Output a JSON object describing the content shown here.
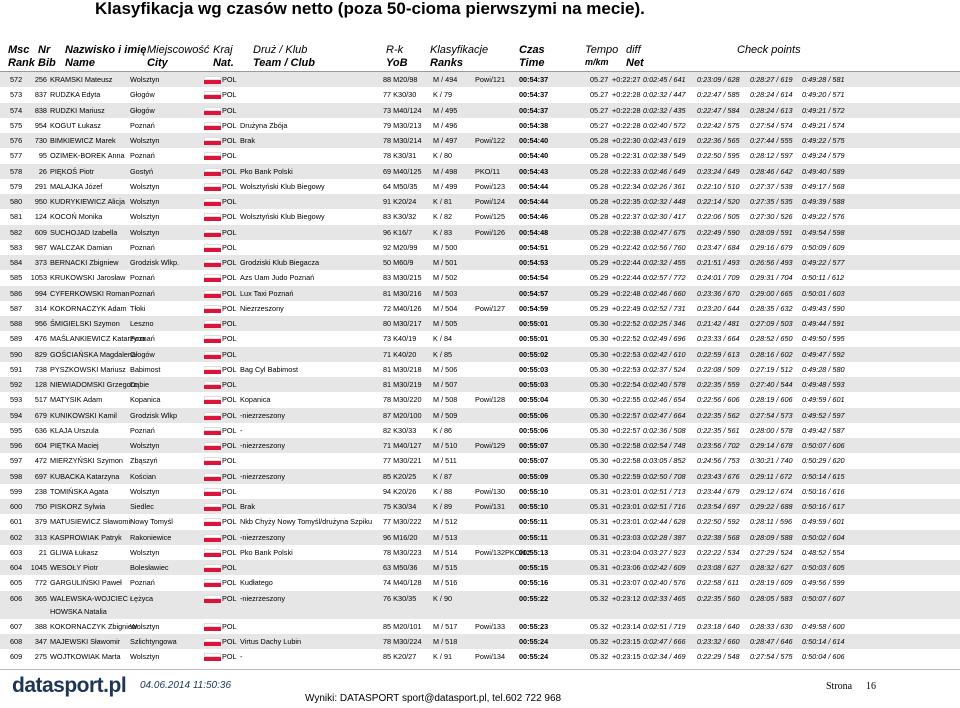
{
  "header": {
    "title": "Klasyfikacja wg czasów netto (poza 50-cioma pierwszymi na mecie).",
    "columns": [
      [
        "Msc",
        "Rank"
      ],
      [
        "Nr",
        "Bib"
      ],
      [
        "Nazwisko i imię",
        "Name"
      ],
      [
        "Miejscowość",
        "City"
      ],
      [
        "Kraj",
        "Nat."
      ],
      [
        "Druż / Klub",
        "Team / Club"
      ],
      [
        "R-k",
        "YoB"
      ],
      [
        "Klasyfikacje",
        "Ranks"
      ],
      [
        "Czas",
        "Time"
      ],
      [
        "Tempo",
        "m/km"
      ],
      [
        "diff",
        "Net"
      ],
      [
        "Check points"
      ]
    ]
  },
  "rows": [
    [
      "572",
      "256",
      "KRAMSKI Mateusz",
      "Wolsztyn",
      "POL",
      null,
      "88 M20/98",
      "M / 494",
      "Powi/121",
      "00:54:37",
      "05.27",
      "+0:22:27",
      "0:02:45 / 641",
      "0:23:09 / 628",
      "0:28:27 / 619",
      "0:49:28 / 581"
    ],
    [
      "573",
      "837",
      "RUDZKA Edyta",
      "Głogów",
      "POL",
      null,
      "77 K30/30",
      "K / 79",
      null,
      "00:54:37",
      "05.27",
      "+0:22:28",
      "0:02:32 / 447",
      "0:22:47 / 585",
      "0:28:24 / 614",
      "0:49:20 / 571"
    ],
    [
      "574",
      "838",
      "RUDZKI Mariusz",
      "Głogów",
      "POL",
      null,
      "73 M40/124",
      "M / 495",
      null,
      "00:54:37",
      "05.27",
      "+0:22:28",
      "0:02:32 / 435",
      "0:22:47 / 584",
      "0:28:24 / 613",
      "0:49:21 / 572"
    ],
    [
      "575",
      "954",
      "KOGUT Łukasz",
      "Poznań",
      "POL",
      "Drużyna Zbója",
      "79 M30/213",
      "M / 496",
      null,
      "00:54:38",
      "05:27",
      "+0:22:28",
      "0:02:40 / 572",
      "0:22:42 / 575",
      "0:27:54 / 574",
      "0:49:21 / 574"
    ],
    [
      "576",
      "730",
      "BIMKIEWICZ Marek",
      "Wolsztyn",
      "POL",
      "Brak",
      "78 M30/214",
      "M / 497",
      "Powi/122",
      "00:54:40",
      "05.28",
      "+0:22:30",
      "0:02:43 / 619",
      "0:22:36 / 565",
      "0:27:44 / 555",
      "0:49:22 / 575"
    ],
    [
      "577",
      "95",
      "OZIMEK-BOREK Anna",
      "Poznań",
      "POL",
      null,
      "78 K30/31",
      "K / 80",
      null,
      "00:54:40",
      "05.28",
      "+0:22:31",
      "0:02:38 / 549",
      "0:22:50 / 595",
      "0:28:12 / 597",
      "0:49:24 / 579"
    ],
    [
      "578",
      "26",
      "PIĘKOŚ Piotr",
      "Gostyń",
      "POL",
      "Pko Bank Polski",
      "69 M40/125",
      "M / 498",
      "PKO/11",
      "00:54:43",
      "05.28",
      "+0:22:33",
      "0:02:46 / 649",
      "0:23:24 / 649",
      "0:28:46 / 642",
      "0:49:40 / 589"
    ],
    [
      "579",
      "291",
      "MALAJKA Józef",
      "Wolsztyn",
      "POL",
      "Wolsztyński Klub Biegowy",
      "64 M50/35",
      "M / 499",
      "Powi/123",
      "00:54:44",
      "05.28",
      "+0:22:34",
      "0:02:26 / 361",
      "0:22:10 / 510",
      "0:27:37 / 538",
      "0:49:17 / 568"
    ],
    [
      "580",
      "950",
      "KUDRYKIEWICZ Alicja",
      "Wolsztyn",
      "POL",
      null,
      "91 K20/24",
      "K / 81",
      "Powi/124",
      "00:54:44",
      "05.28",
      "+0:22:35",
      "0:02:32 / 448",
      "0:22:14 / 520",
      "0:27:35 / 535",
      "0:49:39 / 588"
    ],
    [
      "581",
      "124",
      "KOCOŃ Monika",
      "Wolsztyn",
      "POL",
      "Wolsztyński Klub Biegowy",
      "83 K30/32",
      "K / 82",
      "Powi/125",
      "00:54:46",
      "05.28",
      "+0:22:37",
      "0:02:30 / 417",
      "0:22:06 / 505",
      "0:27:30 / 526",
      "0:49:22 / 576"
    ],
    [
      "582",
      "609",
      "SUCHOJAD Izabella",
      "Wolsztyn",
      "POL",
      null,
      "96 K16/7",
      "K / 83",
      "Powi/126",
      "00:54:48",
      "05.28",
      "+0:22:38",
      "0:02:47 / 675",
      "0:22:49 / 590",
      "0:28:09 / 591",
      "0:49:54 / 598"
    ],
    [
      "583",
      "987",
      "WALCZAK Damian",
      "Poznań",
      "POL",
      null,
      "92 M20/99",
      "M / 500",
      null,
      "00:54:51",
      "05.29",
      "+0:22:42",
      "0:02:56 / 760",
      "0:23:47 / 684",
      "0:29:16 / 679",
      "0:50:09 / 609"
    ],
    [
      "584",
      "373",
      "BERNACKI Zbigniew",
      "Grodzisk Wlkp.",
      "POL",
      "Grodziski Klub Biegacza",
      "50 M60/9",
      "M / 501",
      null,
      "00:54:53",
      "05.29",
      "+0:22:44",
      "0:02:32 / 455",
      "0:21:51 / 493",
      "0:26:56 / 493",
      "0:49:22 / 577"
    ],
    [
      "585",
      "1053",
      "KRUKOWSKI Jarosław",
      "Poznań",
      "POL",
      "Azs Uam Judo Poznań",
      "83 M30/215",
      "M / 502",
      null,
      "00:54:54",
      "05.29",
      "+0:22:44",
      "0:02:57 / 772",
      "0:24:01 / 709",
      "0:29:31 / 704",
      "0:50:11 / 612"
    ],
    [
      "586",
      "994",
      "CYFERKOWSKI Roman",
      "Poznań",
      "POL",
      "Lux Taxi Poznań",
      "81 M30/216",
      "M / 503",
      null,
      "00:54:57",
      "05.29",
      "+0:22:48",
      "0:02:46 / 660",
      "0:23:36 / 670",
      "0:29:00 / 665",
      "0:50:01 / 603"
    ],
    [
      "587",
      "314",
      "KOKORNACZYK Adam",
      "Tłoki",
      "POL",
      "Niezrzeszony",
      "72 M40/126",
      "M / 504",
      "Powi/127",
      "00:54:59",
      "05.29",
      "+0:22:49",
      "0:02:52 / 731",
      "0:23:20 / 644",
      "0:28:35 / 632",
      "0:49:43 / 590"
    ],
    [
      "588",
      "956",
      "ŚMIGIELSKI Szymon",
      "Leszno",
      "POL",
      null,
      "80 M30/217",
      "M / 505",
      null,
      "00:55:01",
      "05.30",
      "+0:22:52",
      "0:02:25 / 346",
      "0:21:42 / 481",
      "0:27:09 / 503",
      "0:49:44 / 591"
    ],
    [
      "589",
      "476",
      "MAŚLANKIEWICZ Katarzyna",
      "Poznań",
      "POL",
      null,
      "73 K40/19",
      "K / 84",
      null,
      "00:55:01",
      "05.30",
      "+0:22:52",
      "0:02:49 / 696",
      "0:23:33 / 664",
      "0:28:52 / 650",
      "0:49:50 / 595"
    ],
    [
      "590",
      "829",
      "GOŚCIAŃSKA Magdalena",
      "Głogów",
      "POL",
      null,
      "71 K40/20",
      "K / 85",
      null,
      "00:55:02",
      "05.30",
      "+0:22:53",
      "0:02:42 / 610",
      "0:22:59 / 613",
      "0:28:16 / 602",
      "0:49:47 / 592"
    ],
    [
      "591",
      "738",
      "PYSZKOWSKI Mariusz",
      "Babimost",
      "POL",
      "Bag Cyl Babimost",
      "81 M30/218",
      "M / 506",
      null,
      "00:55:03",
      "05.30",
      "+0:22:53",
      "0:02:37 / 524",
      "0:22:08 / 509",
      "0:27:19 / 512",
      "0:49:28 / 580"
    ],
    [
      "592",
      "128",
      "NIEWIADOMSKI Grzegorz",
      "Dąbie",
      "POL",
      null,
      "81 M30/219",
      "M / 507",
      null,
      "00:55:03",
      "05.30",
      "+0:22:54",
      "0:02:40 / 578",
      "0:22:35 / 559",
      "0:27:40 / 544",
      "0:49:48 / 593"
    ],
    [
      "593",
      "517",
      "MATYSIK Adam",
      "Kopanica",
      "POL",
      "Kopanica",
      "78 M30/220",
      "M / 508",
      "Powi/128",
      "00:55:04",
      "05.30",
      "+0:22:55",
      "0:02:46 / 654",
      "0:22:56 / 606",
      "0:28:19 / 606",
      "0:49:59 / 601"
    ],
    [
      "594",
      "679",
      "KUNIKOWSKI Kamil",
      "Grodzisk Wlkp",
      "POL",
      "-niezrzeszony",
      "87 M20/100",
      "M / 509",
      null,
      "00:55:06",
      "05.30",
      "+0:22:57",
      "0:02:47 / 664",
      "0:22:35 / 562",
      "0:27:54 / 573",
      "0:49:52 / 597"
    ],
    [
      "595",
      "636",
      "KLAJA Urszula",
      "Poznań",
      "POL",
      "-",
      "82 K30/33",
      "K / 86",
      null,
      "00:55:06",
      "05.30",
      "+0:22:57",
      "0:02:36 / 508",
      "0:22:35 / 561",
      "0:28:00 / 578",
      "0:49:42 / 587"
    ],
    [
      "596",
      "604",
      "PIĘTKA Maciej",
      "Wolsztyn",
      "POL",
      "-niezrzeszony",
      "71 M40/127",
      "M / 510",
      "Powi/129",
      "00:55:07",
      "05.30",
      "+0:22:58",
      "0:02:54 / 748",
      "0:23:56 / 702",
      "0:29:14 / 678",
      "0:50:07 / 606"
    ],
    [
      "597",
      "472",
      "MIERZYŃSKI Szymon",
      "Zbąszyń",
      "POL",
      null,
      "77 M30/221",
      "M / 511",
      null,
      "00:55:07",
      "05.30",
      "+0:22:58",
      "0:03:05 / 852",
      "0:24:56 / 753",
      "0:30:21 / 740",
      "0:50:29 / 620"
    ],
    [
      "598",
      "697",
      "KUBACKA Katarzyna",
      "Kościan",
      "POL",
      "-niezrzeszony",
      "85 K20/25",
      "K / 87",
      null,
      "00:55:09",
      "05.30",
      "+0:22:59",
      "0:02:50 / 708",
      "0:23:43 / 676",
      "0:29:11 / 672",
      "0:50:14 / 615"
    ],
    [
      "599",
      "238",
      "TOMIŃSKA Agata",
      "Wolsztyn",
      "POL",
      null,
      "94 K20/26",
      "K / 88",
      "Powi/130",
      "00:55:10",
      "05.31",
      "+0:23:01",
      "0:02:51 / 713",
      "0:23:44 / 679",
      "0:29:12 / 674",
      "0:50:16 / 616"
    ],
    [
      "600",
      "750",
      "PISKORZ Sylwia",
      "Siedlec",
      "POL",
      "Brak",
      "75 K30/34",
      "K / 89",
      "Powi/131",
      "00:55:10",
      "05.31",
      "+0:23:01",
      "0:02:51 / 716",
      "0:23:54 / 697",
      "0:29:22 / 688",
      "0:50:16 / 617"
    ],
    [
      "601",
      "379",
      "MATUSIEWICZ Sławomir",
      "Nowy Tomyśl",
      "POL",
      "Nkb Chyży Nowy Tomyśl/drużyna Szpiku",
      "77 M30/222",
      "M / 512",
      null,
      "00:55:11",
      "05.31",
      "+0:23:01",
      "0:02:44 / 628",
      "0:22:50 / 592",
      "0:28:11 / 596",
      "0:49:59 / 601"
    ],
    [
      "602",
      "313",
      "KASPROWIAK Patryk",
      "Rakoniewice",
      "POL",
      "-niezrzeszony",
      "96 M16/20",
      "M / 513",
      null,
      "00:55:11",
      "05.31",
      "+0:23:03",
      "0:02:28 / 387",
      "0:22:38 / 568",
      "0:28:09 / 588",
      "0:50:02 / 604"
    ],
    [
      "603",
      "21",
      "GLIWA Łukasz",
      "Wolsztyn",
      "POL",
      "Pko Bank Polski",
      "78 M30/223",
      "M / 514",
      "Powi/132PKO/12",
      "00:55:13",
      "05.31",
      "+0:23:04",
      "0:03:27 / 923",
      "0:22:22 / 534",
      "0:27:29 / 524",
      "0:48:52 / 554"
    ],
    [
      "604",
      "1045",
      "WESOŁY Piotr",
      "Bolesławiec",
      "POL",
      null,
      "63 M50/36",
      "M / 515",
      null,
      "00:55:15",
      "05.31",
      "+0:23:06",
      "0:02:42 / 609",
      "0:23:08 / 627",
      "0:28:32 / 627",
      "0:50:03 / 605"
    ],
    [
      "605",
      "772",
      "GARGULIŃSKI Paweł",
      "Poznań",
      "POL",
      "Kudłatego",
      "74 M40/128",
      "M / 516",
      null,
      "00:55:16",
      "05.31",
      "+0:23:07",
      "0:02:40 / 576",
      "0:22:58 / 611",
      "0:28:19 / 609",
      "0:49:56 / 599"
    ],
    [
      "606",
      "365",
      "WALEWSKA-WOJCIECHOWSKA Natalia",
      "Łężyca",
      "POL",
      "-niezrzeszony",
      "76 K30/35",
      "K / 90",
      null,
      "00:55:22",
      "05.32",
      "+0:23:12",
      "0:02:33 / 465",
      "0:22:35 / 560",
      "0:28:05 / 583",
      "0:50:07 / 607"
    ],
    [
      "607",
      "388",
      "KOKORNACZYK Zbigniew",
      "Wolsztyn",
      "POL",
      null,
      "85 M20/101",
      "M / 517",
      "Powi/133",
      "00:55:23",
      "05.32",
      "+0:23:14",
      "0:02:51 / 719",
      "0:23:18 / 640",
      "0:28:33 / 630",
      "0:49:58 / 600"
    ],
    [
      "608",
      "347",
      "MAJEWSKI Sławomir",
      "Szlichtyngowa",
      "POL",
      "Virtus Dachy Lubin",
      "78 M30/224",
      "M / 518",
      null,
      "00:55:24",
      "05.32",
      "+0:23:15",
      "0:02:47 / 666",
      "0:23:32 / 660",
      "0:28:47 / 646",
      "0:50:14 / 614"
    ],
    [
      "609",
      "275",
      "WOJTKOWIAK Marta",
      "Wolsztyn",
      "POL",
      "-",
      "85 K20/27",
      "K / 91",
      "Powi/134",
      "00:55:24",
      "05.32",
      "+0:23:15",
      "0:02:34 / 469",
      "0:22:29 / 548",
      "0:27:54 / 575",
      "0:50:04 / 606"
    ]
  ],
  "footer": {
    "logo": "datasport.pl",
    "date": "04.06.2014 11:50:36",
    "contact": "Wyniki: DATASPORT sport@datasport.pl, tel.602 722 968",
    "page_label": "Strona",
    "page": "16"
  }
}
